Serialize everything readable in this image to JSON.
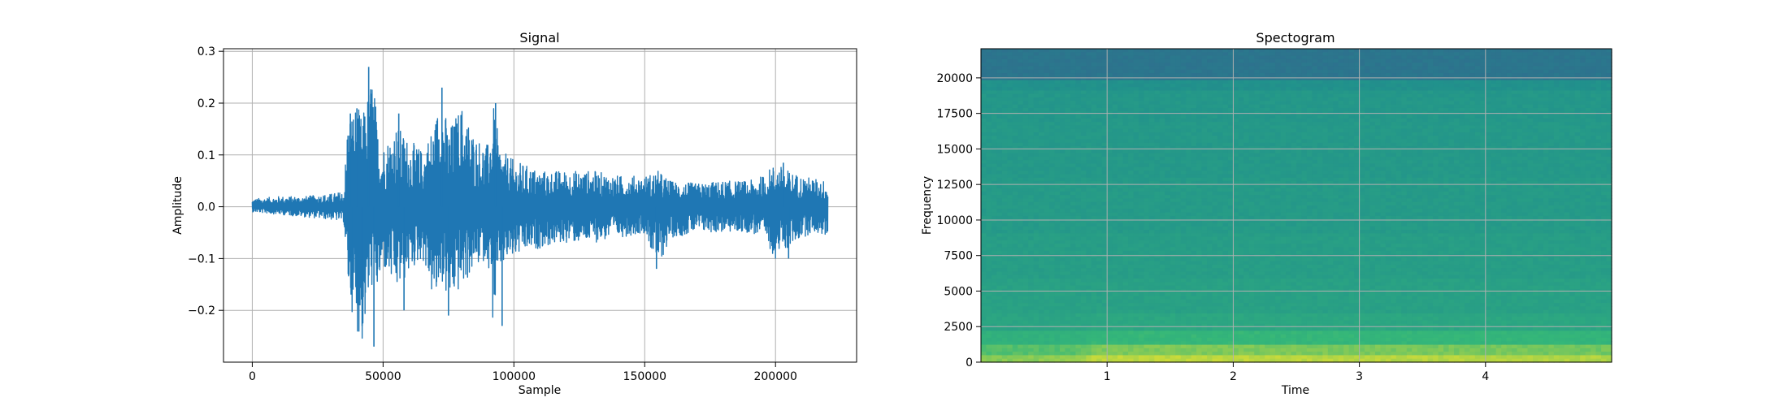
{
  "chart_data": [
    {
      "type": "line",
      "title": "Signal",
      "xlabel": "Sample",
      "ylabel": "Amplitude",
      "xlim": [
        -11000,
        231000
      ],
      "ylim": [
        -0.3,
        0.305
      ],
      "xticks": [
        0,
        50000,
        100000,
        150000,
        200000
      ],
      "xtick_labels": [
        "0",
        "50000",
        "100000",
        "150000",
        "200000"
      ],
      "yticks": [
        -0.2,
        -0.1,
        0.0,
        0.1,
        0.2,
        0.3
      ],
      "ytick_labels": [
        "−0.2",
        "−0.1",
        "0.0",
        "0.1",
        "0.2",
        "0.3"
      ],
      "grid": true,
      "series": [
        {
          "color": "#1f77b4",
          "envelope_x": [
            0,
            10000,
            20000,
            30000,
            35000,
            36500,
            38000,
            40000,
            42000,
            44000,
            46000,
            48000,
            50000,
            55000,
            60000,
            65000,
            70000,
            72000,
            75000,
            80000,
            85000,
            90000,
            92000,
            95000,
            100000,
            110000,
            120000,
            130000,
            140000,
            150000,
            155000,
            160000,
            170000,
            180000,
            190000,
            195000,
            200000,
            205000,
            210000,
            215000,
            220000
          ],
          "envelope_max": [
            0.015,
            0.02,
            0.02,
            0.025,
            0.03,
            0.18,
            0.19,
            0.2,
            0.17,
            0.22,
            0.27,
            0.15,
            0.12,
            0.16,
            0.13,
            0.11,
            0.17,
            0.23,
            0.15,
            0.2,
            0.14,
            0.12,
            0.2,
            0.11,
            0.09,
            0.07,
            0.07,
            0.07,
            0.06,
            0.06,
            0.07,
            0.05,
            0.045,
            0.05,
            0.05,
            0.06,
            0.085,
            0.07,
            0.06,
            0.055,
            0.05
          ],
          "envelope_min": [
            -0.01,
            -0.015,
            -0.02,
            -0.025,
            -0.03,
            -0.16,
            -0.2,
            -0.24,
            -0.27,
            -0.2,
            -0.15,
            -0.17,
            -0.12,
            -0.17,
            -0.13,
            -0.1,
            -0.2,
            -0.14,
            -0.19,
            -0.16,
            -0.12,
            -0.1,
            -0.23,
            -0.12,
            -0.1,
            -0.08,
            -0.07,
            -0.07,
            -0.06,
            -0.05,
            -0.12,
            -0.06,
            -0.05,
            -0.05,
            -0.05,
            -0.06,
            -0.1,
            -0.08,
            -0.06,
            -0.05,
            -0.06
          ],
          "spikes": [
            [
              37500,
              0.18
            ],
            [
              38500,
              -0.16
            ],
            [
              40000,
              0.19
            ],
            [
              42000,
              -0.23
            ],
            [
              44500,
              0.27
            ],
            [
              46500,
              -0.27
            ],
            [
              56000,
              0.18
            ],
            [
              58000,
              -0.2
            ],
            [
              72500,
              0.23
            ],
            [
              75000,
              -0.21
            ],
            [
              93000,
              0.2
            ],
            [
              95500,
              -0.23
            ],
            [
              154500,
              -0.12
            ],
            [
              203000,
              0.085
            ],
            [
              205000,
              -0.1
            ]
          ]
        }
      ]
    },
    {
      "type": "heatmap",
      "title": "Spectogram",
      "xlabel": "Time",
      "ylabel": "Frequency",
      "xlim": [
        0,
        5.0
      ],
      "ylim": [
        0,
        22050
      ],
      "xticks": [
        1,
        2,
        3,
        4
      ],
      "xtick_labels": [
        "1",
        "2",
        "3",
        "4"
      ],
      "yticks": [
        0,
        2500,
        5000,
        7500,
        10000,
        12500,
        15000,
        17500,
        20000
      ],
      "ytick_labels": [
        "0",
        "2500",
        "5000",
        "7500",
        "10000",
        "12500",
        "15000",
        "17500",
        "20000"
      ],
      "grid": true,
      "colormap_stops": [
        "#440154",
        "#31688e",
        "#21918c",
        "#35b779",
        "#fde725"
      ],
      "freq_bands": [
        {
          "from": 0,
          "to": 500,
          "level": 0.92
        },
        {
          "from": 500,
          "to": 1200,
          "level": 0.84
        },
        {
          "from": 1200,
          "to": 2200,
          "level": 0.74
        },
        {
          "from": 2200,
          "to": 3500,
          "level": 0.64
        },
        {
          "from": 3500,
          "to": 6000,
          "level": 0.6
        },
        {
          "from": 6000,
          "to": 9000,
          "level": 0.58
        },
        {
          "from": 9000,
          "to": 13000,
          "level": 0.56
        },
        {
          "from": 13000,
          "to": 17000,
          "level": 0.55
        },
        {
          "from": 17000,
          "to": 19000,
          "level": 0.54
        },
        {
          "from": 19000,
          "to": 19900,
          "level": 0.5
        },
        {
          "from": 19900,
          "to": 22050,
          "level": 0.33
        }
      ],
      "time_energy": [
        {
          "t": 0.0,
          "gain": 0.8
        },
        {
          "t": 0.8,
          "gain": 0.85
        },
        {
          "t": 0.9,
          "gain": 1.0
        },
        {
          "t": 2.0,
          "gain": 1.0
        },
        {
          "t": 3.0,
          "gain": 0.98
        },
        {
          "t": 4.0,
          "gain": 0.97
        },
        {
          "t": 5.0,
          "gain": 0.95
        }
      ]
    }
  ]
}
